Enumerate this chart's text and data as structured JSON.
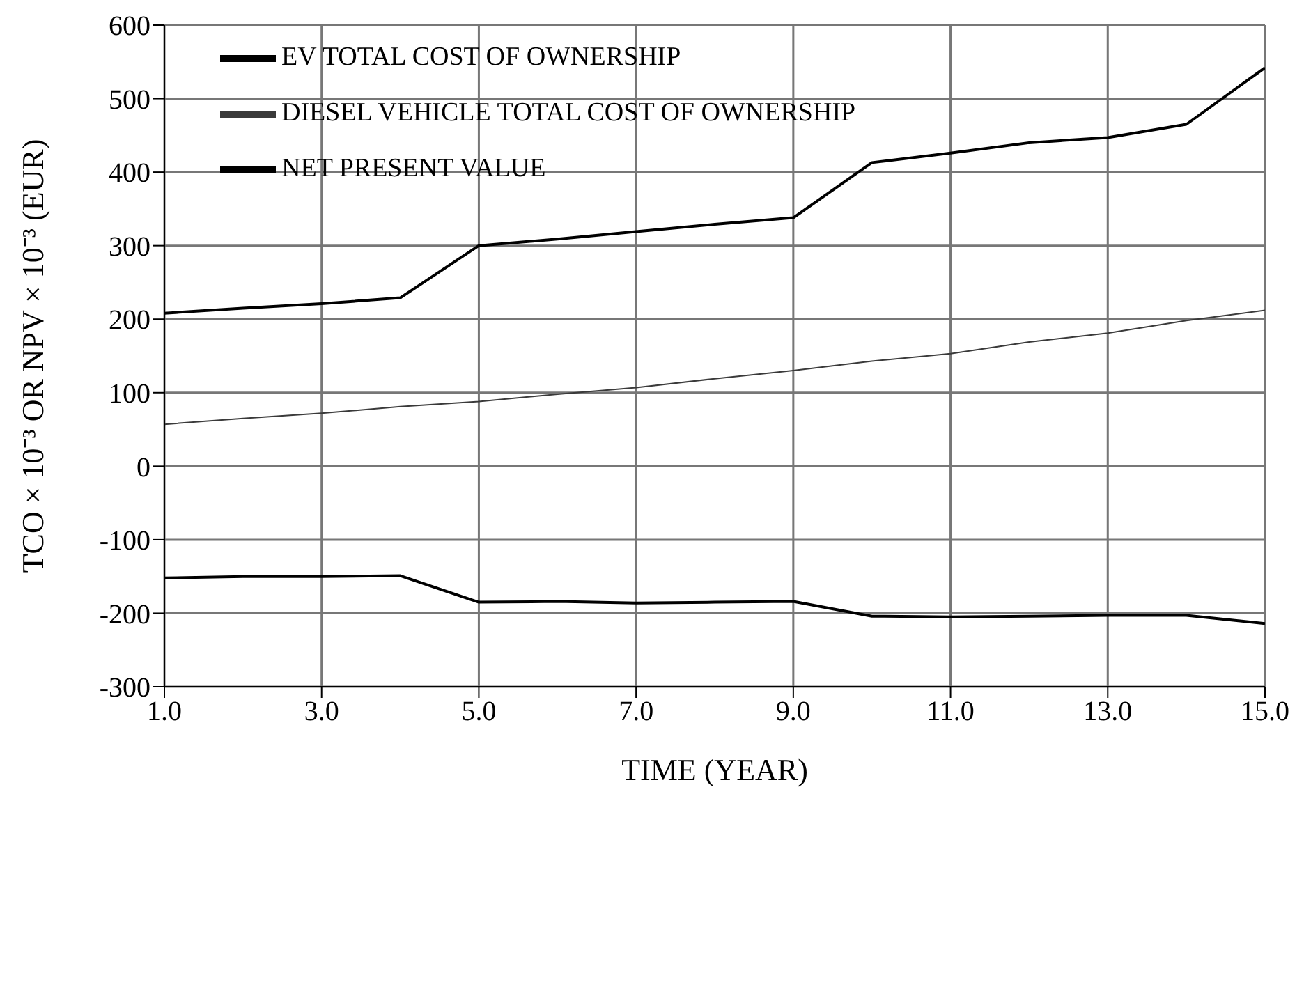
{
  "chart_data": {
    "type": "line",
    "xlabel": "TIME (YEAR)",
    "ylabel": "TCO × 10⁻³ OR NPV × 10⁻³ (EUR)",
    "x": [
      1,
      2,
      3,
      4,
      5,
      6,
      7,
      8,
      9,
      10,
      11,
      12,
      13,
      14,
      15
    ],
    "series": [
      {
        "name": "EV TOTAL COST OF OWNERSHIP",
        "color": "#000000",
        "values": [
          208,
          215,
          221,
          229,
          300,
          309,
          319,
          329,
          338,
          413,
          426,
          440,
          447,
          465,
          542
        ]
      },
      {
        "name": "DIESEL VEHICLE TOTAL COST OF OWNERSHIP",
        "color": "#3a3a3a",
        "values": [
          57,
          65,
          72,
          81,
          88,
          98,
          107,
          119,
          130,
          143,
          153,
          169,
          181,
          198,
          212
        ]
      },
      {
        "name": "NET PRESENT VALUE",
        "color": "#000000",
        "values": [
          -152,
          -150,
          -150,
          -149,
          -185,
          -184,
          -186,
          -185,
          -184,
          -204,
          -205,
          -204,
          -203,
          -203,
          -214
        ]
      }
    ],
    "xlim": [
      1,
      15
    ],
    "xticks": [
      {
        "value": 1,
        "label": "1.0"
      },
      {
        "value": 3,
        "label": "3.0"
      },
      {
        "value": 5,
        "label": "5.0"
      },
      {
        "value": 7,
        "label": "7.0"
      },
      {
        "value": 9,
        "label": "9.0"
      },
      {
        "value": 11,
        "label": "11.0"
      },
      {
        "value": 13,
        "label": "13.0"
      },
      {
        "value": 15,
        "label": "15.0"
      }
    ],
    "ylim": [
      -300,
      600
    ],
    "yticks": [
      -300,
      -200,
      -100,
      0,
      100,
      200,
      300,
      400,
      500,
      600
    ],
    "grid": true,
    "legend": "top left",
    "marker": "none",
    "line_style": "solid"
  }
}
